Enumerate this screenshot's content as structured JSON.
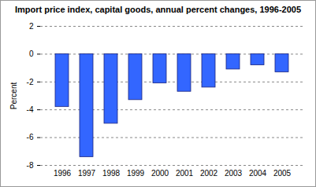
{
  "chart_data": {
    "type": "bar",
    "title": "Import price index,  capital goods, annual percent changes, 1996-2005",
    "y_label": "Percent",
    "categories": [
      "1996",
      "1997",
      "1998",
      "1999",
      "2000",
      "2001",
      "2002",
      "2003",
      "2004",
      "2005"
    ],
    "values": [
      -3.8,
      -7.4,
      -5.0,
      -3.3,
      -2.1,
      -2.7,
      -2.4,
      -1.1,
      -0.8,
      -1.3
    ],
    "color": "#3366ff",
    "ylim": [
      -8,
      2
    ],
    "yticks": [
      -8,
      -6,
      -4,
      -2,
      0,
      2
    ],
    "grid": true
  }
}
